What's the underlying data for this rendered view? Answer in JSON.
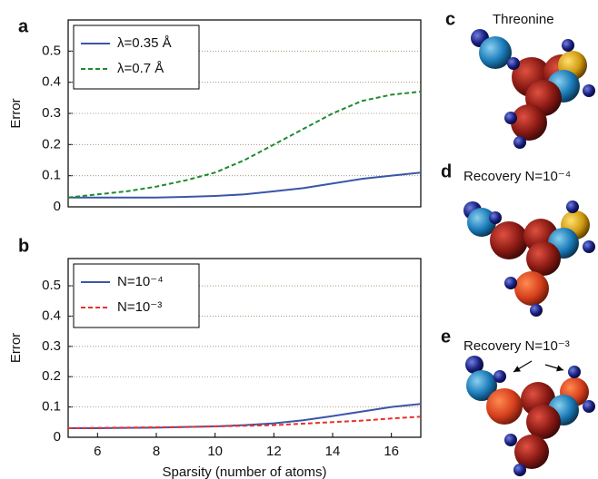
{
  "chart_data": [
    {
      "type": "line",
      "panel": "a",
      "ylabel": "Error",
      "x": [
        5,
        6,
        7,
        8,
        9,
        10,
        11,
        12,
        13,
        14,
        15,
        16,
        17
      ],
      "series": [
        {
          "name": "λ=0.35 Å",
          "color": "#3b55a8",
          "line_style": "solid",
          "values": [
            0.03,
            0.03,
            0.03,
            0.03,
            0.032,
            0.035,
            0.04,
            0.05,
            0.06,
            0.075,
            0.09,
            0.1,
            0.11
          ]
        },
        {
          "name": "λ=0.7 Å",
          "color": "#1f8a2e",
          "line_style": "dashed",
          "values": [
            0.03,
            0.04,
            0.05,
            0.065,
            0.085,
            0.11,
            0.15,
            0.2,
            0.25,
            0.3,
            0.34,
            0.36,
            0.37
          ]
        }
      ],
      "xlim": [
        5,
        17
      ],
      "ylim": [
        0,
        0.6
      ],
      "yticks": [
        0,
        0.1,
        0.2,
        0.3,
        0.4,
        0.5
      ],
      "grid": true,
      "legend": "upper left"
    },
    {
      "type": "line",
      "panel": "b",
      "ylabel": "Error",
      "xlabel": "Sparsity (number of atoms)",
      "x": [
        5,
        6,
        7,
        8,
        9,
        10,
        11,
        12,
        13,
        14,
        15,
        16,
        17
      ],
      "series": [
        {
          "name": "N=10⁻⁴",
          "color": "#3b55a8",
          "line_style": "solid",
          "values": [
            0.03,
            0.03,
            0.031,
            0.032,
            0.034,
            0.036,
            0.04,
            0.046,
            0.056,
            0.07,
            0.085,
            0.1,
            0.11
          ]
        },
        {
          "name": "N=10⁻³",
          "color": "#e8312a",
          "line_style": "dashed",
          "values": [
            0.03,
            0.031,
            0.032,
            0.033,
            0.034,
            0.036,
            0.038,
            0.04,
            0.045,
            0.05,
            0.055,
            0.062,
            0.068
          ]
        }
      ],
      "xlim": [
        5,
        17
      ],
      "ylim": [
        0,
        0.59
      ],
      "xticks": [
        6,
        8,
        10,
        12,
        14,
        16
      ],
      "yticks": [
        0,
        0.1,
        0.2,
        0.3,
        0.4,
        0.5
      ],
      "grid": true,
      "legend": "upper left"
    }
  ],
  "molecules": [
    {
      "panel": "c",
      "caption": "Threonine"
    },
    {
      "panel": "d",
      "caption": "Recovery N=10⁻⁴"
    },
    {
      "panel": "e",
      "caption": "Recovery N=10⁻³"
    }
  ]
}
